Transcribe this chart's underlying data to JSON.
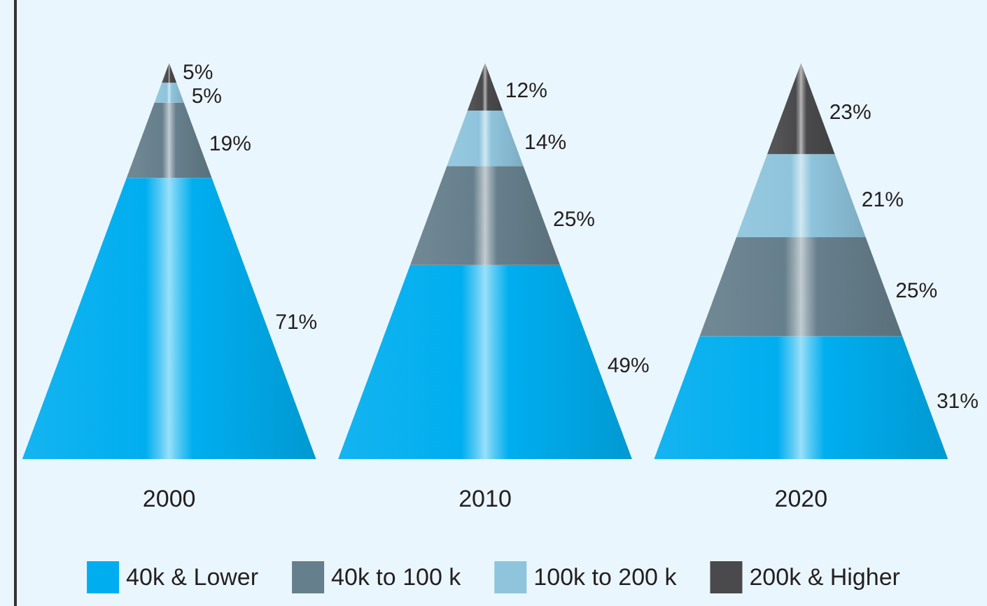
{
  "chart_data": {
    "type": "other",
    "categories": [
      "2000",
      "2010",
      "2020"
    ],
    "series": [
      {
        "name": "40k & Lower",
        "color": "#00aeef",
        "values": [
          71,
          49,
          31
        ],
        "value_labels": [
          "71%",
          "49%",
          "31%"
        ]
      },
      {
        "name": "40k to 100 k",
        "color": "#667f8c",
        "values": [
          19,
          25,
          25
        ],
        "value_labels": [
          "19%",
          "25%",
          "25%"
        ]
      },
      {
        "name": "100k to 200 k",
        "color": "#8ec4dc",
        "values": [
          5,
          14,
          21
        ],
        "value_labels": [
          "5%",
          "14%",
          "21%"
        ]
      },
      {
        "name": "200k & Higher",
        "color": "#4a4a4c",
        "values": [
          5,
          12,
          23
        ],
        "value_labels": [
          "5%",
          "12%",
          "23%"
        ]
      }
    ],
    "legend": "bottom"
  }
}
